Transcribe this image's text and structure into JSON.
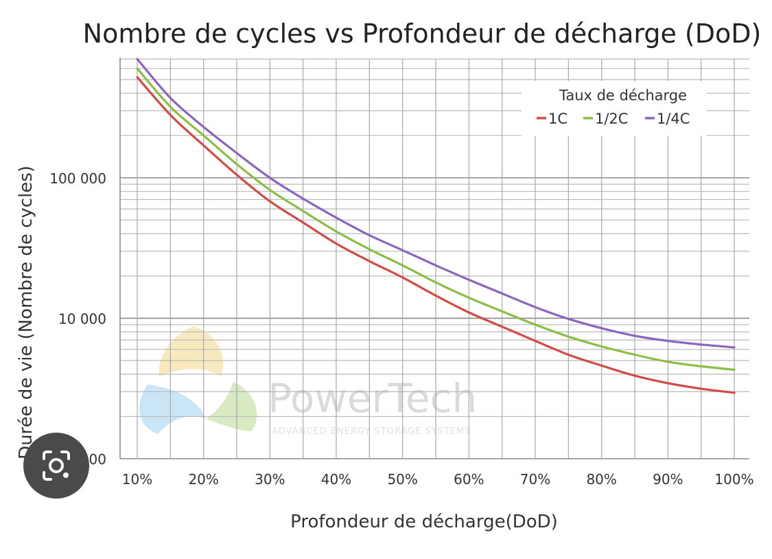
{
  "chart_data": {
    "type": "line",
    "title": "Nombre de cycles vs Profondeur de décharge (DoD)",
    "xlabel": "Profondeur de décharge(DoD)",
    "ylabel": "Durée de vie (Nombre de cycles)",
    "x": [
      10,
      15,
      20,
      25,
      30,
      35,
      40,
      45,
      50,
      55,
      60,
      65,
      70,
      75,
      80,
      85,
      90,
      95,
      100
    ],
    "x_tick_labels": [
      "10%",
      "20%",
      "30%",
      "40%",
      "50%",
      "60%",
      "70%",
      "80%",
      "90%",
      "100%"
    ],
    "y_tick_labels": [
      "100 000",
      "10 000",
      "1 000"
    ],
    "y_scale": "log",
    "ylim": [
      1000,
      700000
    ],
    "xlim": [
      10,
      100
    ],
    "grid": true,
    "legend": {
      "title": "Taux de décharge",
      "position": "top-right"
    },
    "series": [
      {
        "name": "1C",
        "color": "#d24b45",
        "values": [
          520000,
          280000,
          170000,
          105000,
          68000,
          48000,
          34000,
          25500,
          19500,
          14500,
          11000,
          8700,
          6900,
          5500,
          4600,
          3900,
          3450,
          3150,
          2950
        ]
      },
      {
        "name": "1/2C",
        "color": "#8cbd44",
        "values": [
          600000,
          320000,
          200000,
          125000,
          82000,
          58000,
          41500,
          31000,
          23800,
          18000,
          14000,
          11200,
          9000,
          7400,
          6300,
          5500,
          4900,
          4550,
          4300
        ]
      },
      {
        "name": "1/4C",
        "color": "#8b64c0",
        "values": [
          700000,
          370000,
          230000,
          150000,
          100000,
          71000,
          52000,
          39000,
          30500,
          23800,
          18800,
          15000,
          12000,
          9900,
          8500,
          7500,
          6900,
          6500,
          6200
        ]
      }
    ]
  },
  "watermark": {
    "brand": "PowerTech",
    "tagline": "ADVANCED ENERGY STORAGE SYSTEMS"
  },
  "overlay": {
    "lens_icon": "lens-search-icon"
  }
}
